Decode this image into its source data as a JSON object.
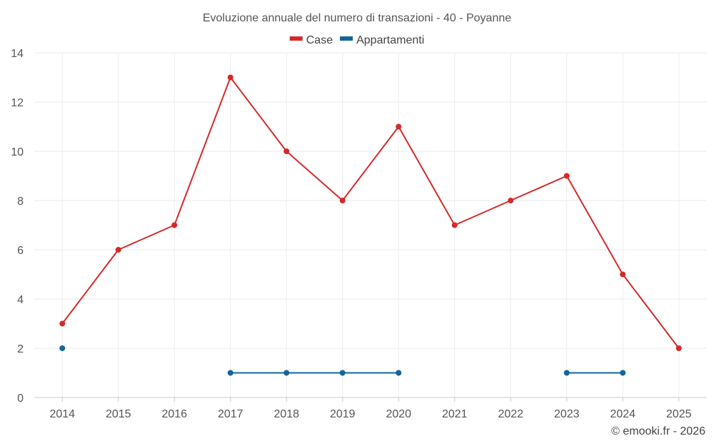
{
  "chart_data": {
    "type": "line",
    "title": "Evoluzione annuale del numero di transazioni - 40 - Poyanne",
    "xlabel": "",
    "ylabel": "",
    "categories": [
      "2014",
      "2015",
      "2016",
      "2017",
      "2018",
      "2019",
      "2020",
      "2021",
      "2022",
      "2023",
      "2024",
      "2025"
    ],
    "ylim": [
      0,
      14
    ],
    "yticks": [
      0,
      2,
      4,
      6,
      8,
      10,
      12,
      14
    ],
    "grid": true,
    "legend_position": "top-center",
    "series": [
      {
        "name": "Case",
        "color": "#d42a2a",
        "values": [
          3,
          6,
          7,
          13,
          10,
          8,
          11,
          7,
          8,
          9,
          5,
          2
        ]
      },
      {
        "name": "Appartamenti",
        "color": "#13659b",
        "values": [
          2,
          null,
          null,
          1,
          1,
          1,
          1,
          null,
          null,
          1,
          1,
          null
        ]
      }
    ]
  },
  "credit": "© emooki.fr - 2026"
}
